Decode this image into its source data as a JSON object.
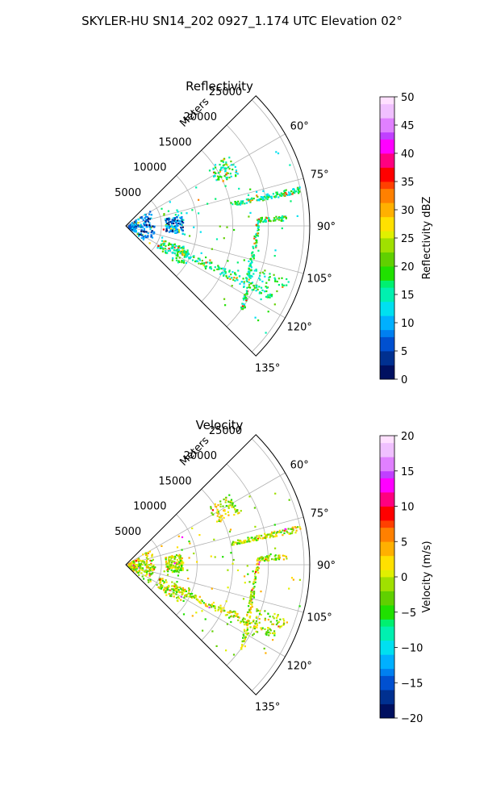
{
  "figure_title": "SKYLER-HU  SN14_202  0927_1.174 UTC Elevation 02°",
  "chart_data": [
    {
      "type": "scatter",
      "title": "Reflectivity",
      "projection": "polar-sector",
      "range_label": "Meters",
      "range_ticks": [
        5000,
        10000,
        15000,
        20000,
        25000
      ],
      "range_max": 25800,
      "angle_range_deg": [
        45,
        135
      ],
      "angle_ticks": [
        "60°",
        "75°",
        "90°",
        "105°",
        "120°",
        "135°"
      ],
      "colorbar": {
        "label": "Reflectivity dBZ",
        "ticks": [
          "0",
          "5",
          "10",
          "15",
          "20",
          "25",
          "30",
          "35",
          "40",
          "45",
          "50"
        ],
        "min": 0,
        "max": 50
      }
    },
    {
      "type": "scatter",
      "title": "Velocity",
      "projection": "polar-sector",
      "range_label": "Meters",
      "range_ticks": [
        5000,
        10000,
        15000,
        20000,
        25000
      ],
      "range_max": 25800,
      "angle_range_deg": [
        45,
        135
      ],
      "angle_ticks": [
        "60°",
        "75°",
        "90°",
        "105°",
        "120°",
        "135°"
      ],
      "colorbar": {
        "label": "Velocity (m/s)",
        "ticks": [
          "−20",
          "−15",
          "−10",
          "−5",
          "0",
          "5",
          "10",
          "15",
          "20"
        ],
        "min": -20,
        "max": 20
      }
    }
  ],
  "colormap": [
    "#001060",
    "#003090",
    "#0050d0",
    "#0080f0",
    "#00b0ff",
    "#00e0f0",
    "#00f0b0",
    "#00f070",
    "#20e000",
    "#60d000",
    "#a0e000",
    "#e0f000",
    "#ffe000",
    "#ffb000",
    "#ff8000",
    "#ff4000",
    "#ff0000",
    "#ff0080",
    "#ff00ff",
    "#c040ff",
    "#e080ff",
    "#f0c0ff",
    "#ffe0ff"
  ]
}
